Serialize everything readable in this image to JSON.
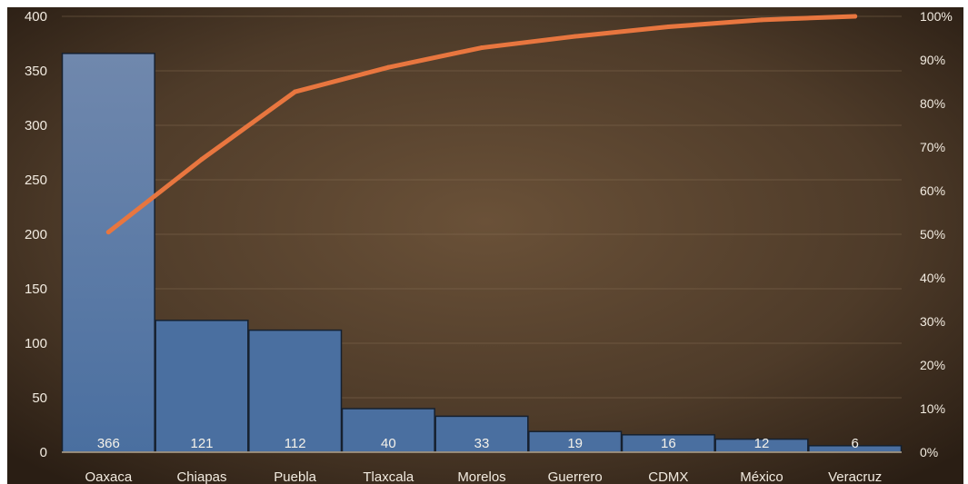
{
  "chart_data": {
    "type": "bar",
    "categories": [
      "Oaxaca",
      "Chiapas",
      "Puebla",
      "Tlaxcala",
      "Morelos",
      "Guerrero",
      "CDMX",
      "México",
      "Veracruz"
    ],
    "series": [
      {
        "values": [
          366,
          121,
          112,
          40,
          33,
          19,
          16,
          12,
          6
        ]
      }
    ],
    "line_series": {
      "axis": "right",
      "values": [
        50.5,
        67.2,
        82.7,
        88.3,
        92.8,
        95.4,
        97.6,
        99.2,
        100
      ]
    },
    "ylim": [
      0,
      400
    ],
    "yticks": [
      "0",
      "50",
      "100",
      "150",
      "200",
      "250",
      "300",
      "350",
      "400"
    ],
    "y2lim": [
      0,
      100
    ],
    "y2ticks": [
      "0%",
      "10%",
      "20%",
      "30%",
      "40%",
      "50%",
      "60%",
      "70%",
      "80%",
      "90%",
      "100%"
    ],
    "data_labels": [
      "366",
      "121",
      "112",
      "40",
      "33",
      "19",
      "16",
      "12",
      "6"
    ],
    "grid": true,
    "legend": "none",
    "colors": {
      "bar": "#4a6fa0",
      "bar_top": "#7088ad",
      "line": "#e8763f",
      "background_center": "#6a5138",
      "background_edge": "#2a1e14",
      "text": "#f2ebe0"
    }
  }
}
